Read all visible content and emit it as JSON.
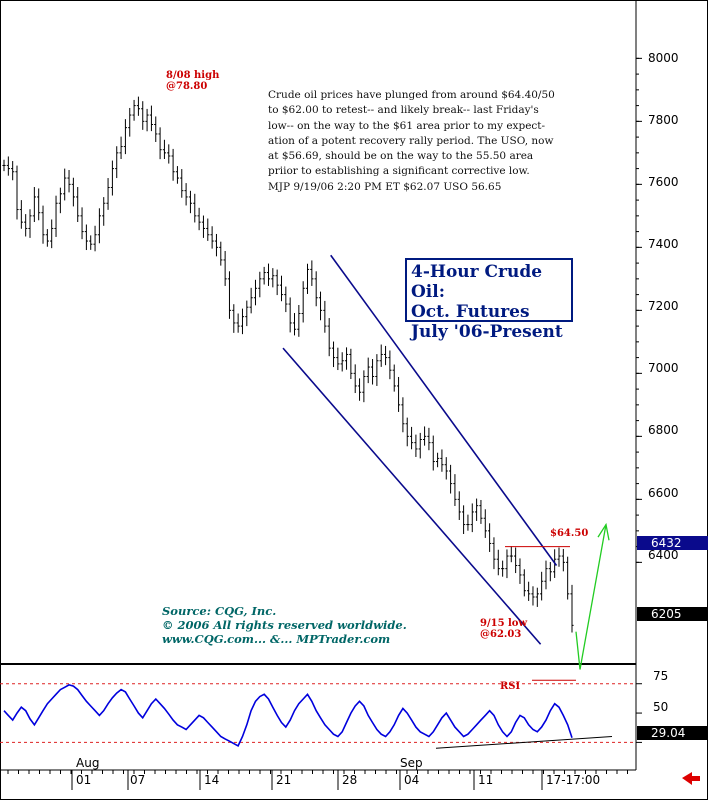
{
  "chart_data": [
    {
      "type": "bar",
      "subtype": "ohlc-price",
      "title_lines": [
        "4-Hour Crude Oil:",
        "Oct. Futures",
        "July '06-Present"
      ],
      "y_axis_ticks": [
        8000,
        7800,
        7600,
        7400,
        7200,
        7000,
        6800,
        6600,
        6400
      ],
      "ylim": [
        6090,
        8090
      ],
      "y_axis_side": "right",
      "x_month_labels": [
        "Aug",
        "Sep"
      ],
      "x_day_labels": [
        "01",
        "07",
        "14",
        "21",
        "28",
        "04",
        "11",
        "17-17:00"
      ],
      "series": [
        {
          "closes": [
            7660,
            7650,
            7640,
            7520,
            7480,
            7460,
            7500,
            7560,
            7510,
            7440,
            7420,
            7460,
            7540,
            7570,
            7620,
            7600,
            7560,
            7500,
            7450,
            7420,
            7410,
            7440,
            7500,
            7540,
            7590,
            7650,
            7700,
            7720,
            7780,
            7820,
            7850,
            7840,
            7800,
            7820,
            7790,
            7760,
            7710,
            7700,
            7690,
            7640,
            7620,
            7580,
            7560,
            7540,
            7500,
            7480,
            7460,
            7440,
            7420,
            7400,
            7360,
            7300,
            7200,
            7160,
            7150,
            7180,
            7210,
            7240,
            7270,
            7300,
            7320,
            7300,
            7310,
            7280,
            7250,
            7220,
            7160,
            7140,
            7190,
            7270,
            7330,
            7300,
            7240,
            7200,
            7150,
            7080,
            7050,
            7030,
            7040,
            7060,
            7000,
            6960,
            6940,
            6990,
            7020,
            6990,
            7040,
            7060,
            7050,
            7010,
            6960,
            6900,
            6840,
            6800,
            6780,
            6760,
            6790,
            6800,
            6780,
            6720,
            6730,
            6710,
            6690,
            6650,
            6600,
            6560,
            6520,
            6520,
            6560,
            6580,
            6540,
            6500,
            6460,
            6410,
            6380,
            6380,
            6420,
            6420,
            6390,
            6360,
            6310,
            6300,
            6290,
            6300,
            6340,
            6380,
            6370,
            6410,
            6420,
            6400,
            6300,
            6200
          ],
          "range_half": 30
        }
      ],
      "annotations": {
        "high_label": [
          "8/08 high",
          "@78.80"
        ],
        "low_label": [
          "9/15 low",
          "@62.03"
        ],
        "resistance_label": "$64.50",
        "commentary": "Crude oil prices have plunged from around $64.40/50\nto $62.00 to retest-- and likely break-- last Friday's\nlow-- on the way to the $61 area prior to my expect-\nation of a potent recovery rally period. The USO, now\nat $56.69, should be on the way to the 55.50 area\npriior to establishing a significant corrective low.\nMJP  9/19/06  2:20 PM ET  $62.07  USO 56.65",
        "source_lines": [
          "Source: CQG, Inc.",
          "© 2006 All rights reserved worldwide.",
          "www.CQG.com... &... MPTrader.com"
        ]
      },
      "price_tags": [
        {
          "label": "6432",
          "value": 6432,
          "color": "#0a0a8c"
        },
        {
          "label": "6205",
          "value": 6205,
          "color": "#000000"
        }
      ],
      "trend_channel": {
        "upper": [
          [
            7375,
            0.52
          ],
          [
            6390,
            0.875
          ]
        ],
        "lower": [
          [
            7080,
            0.445
          ],
          [
            6140,
            0.85
          ]
        ]
      },
      "resistance_level": 6450,
      "projection": {
        "color": "#22cc22"
      }
    },
    {
      "type": "line",
      "name": "RSI",
      "label": "RSI",
      "y_axis_ticks": [
        75,
        50,
        25
      ],
      "ylim": [
        10,
        85
      ],
      "reference_lines": [
        75,
        25
      ],
      "last_value_label": "29.04",
      "values": [
        52,
        48,
        44,
        50,
        55,
        52,
        45,
        40,
        46,
        52,
        58,
        62,
        66,
        70,
        72,
        74,
        73,
        70,
        65,
        60,
        56,
        52,
        48,
        52,
        58,
        63,
        67,
        70,
        68,
        62,
        56,
        50,
        46,
        52,
        58,
        62,
        58,
        54,
        49,
        44,
        40,
        38,
        36,
        40,
        44,
        48,
        46,
        42,
        38,
        34,
        30,
        28,
        26,
        24,
        22,
        30,
        40,
        52,
        60,
        64,
        66,
        62,
        55,
        48,
        42,
        38,
        44,
        52,
        58,
        62,
        66,
        60,
        52,
        46,
        40,
        36,
        32,
        30,
        34,
        42,
        50,
        56,
        60,
        56,
        48,
        42,
        36,
        32,
        30,
        34,
        40,
        48,
        54,
        50,
        44,
        38,
        34,
        32,
        30,
        34,
        40,
        46,
        50,
        44,
        38,
        34,
        30,
        32,
        36,
        40,
        44,
        48,
        52,
        48,
        40,
        34,
        30,
        34,
        42,
        48,
        46,
        40,
        36,
        34,
        38,
        44,
        52,
        58,
        55,
        48,
        40,
        29
      ]
    }
  ],
  "colors": {
    "price_bars": "#000000",
    "channel": "#0a0a8c",
    "rsi_line": "#0000dd",
    "rsi_ref": "#dd2222",
    "annotation_red": "#cc0000",
    "source_text": "#006666",
    "projection": "#22cc22"
  }
}
